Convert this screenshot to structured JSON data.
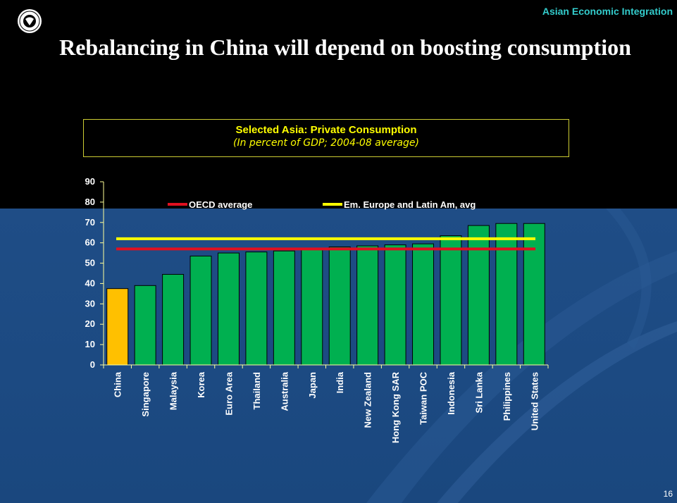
{
  "header": {
    "label": "Asian Economic Integration"
  },
  "slide": {
    "title": "Rebalancing in China will depend on boosting consumption",
    "page_number": "16"
  },
  "logo": {
    "icon": "imf-seal-icon"
  },
  "colors": {
    "highlight_bar": "#ffc000",
    "bar": "#00b050",
    "oecd_line": "#e01020",
    "em_line": "#ffff00",
    "axis": "#ffff99",
    "accent": "#33cccc"
  },
  "chart_data": {
    "type": "bar",
    "title": "Selected Asia: Private Consumption",
    "subtitle": "(In percent of GDP; 2004-08 average)",
    "categories": [
      "China",
      "Singapore",
      "Malaysia",
      "Korea",
      "Euro Area",
      "Thailand",
      "Australia",
      "Japan",
      "India",
      "New Zealand",
      "Hong Kong SAR",
      "Taiwan POC",
      "Indonesia",
      "Sri Lanka",
      "Philippines",
      "United States"
    ],
    "values": [
      37.5,
      39,
      44.5,
      53.5,
      55,
      55.5,
      56,
      57,
      58,
      58.5,
      59,
      59.5,
      63.5,
      68.5,
      69.5,
      69.5
    ],
    "highlight": "China",
    "reference_lines": [
      {
        "name": "OECD average",
        "value": 57
      },
      {
        "name": "Em. Europe and Latin Am, avg",
        "value": 62
      }
    ],
    "ylim": [
      0,
      90
    ],
    "yticks": [
      0,
      10,
      20,
      30,
      40,
      50,
      60,
      70,
      80,
      90
    ],
    "legend_position": "top",
    "grid": false
  }
}
